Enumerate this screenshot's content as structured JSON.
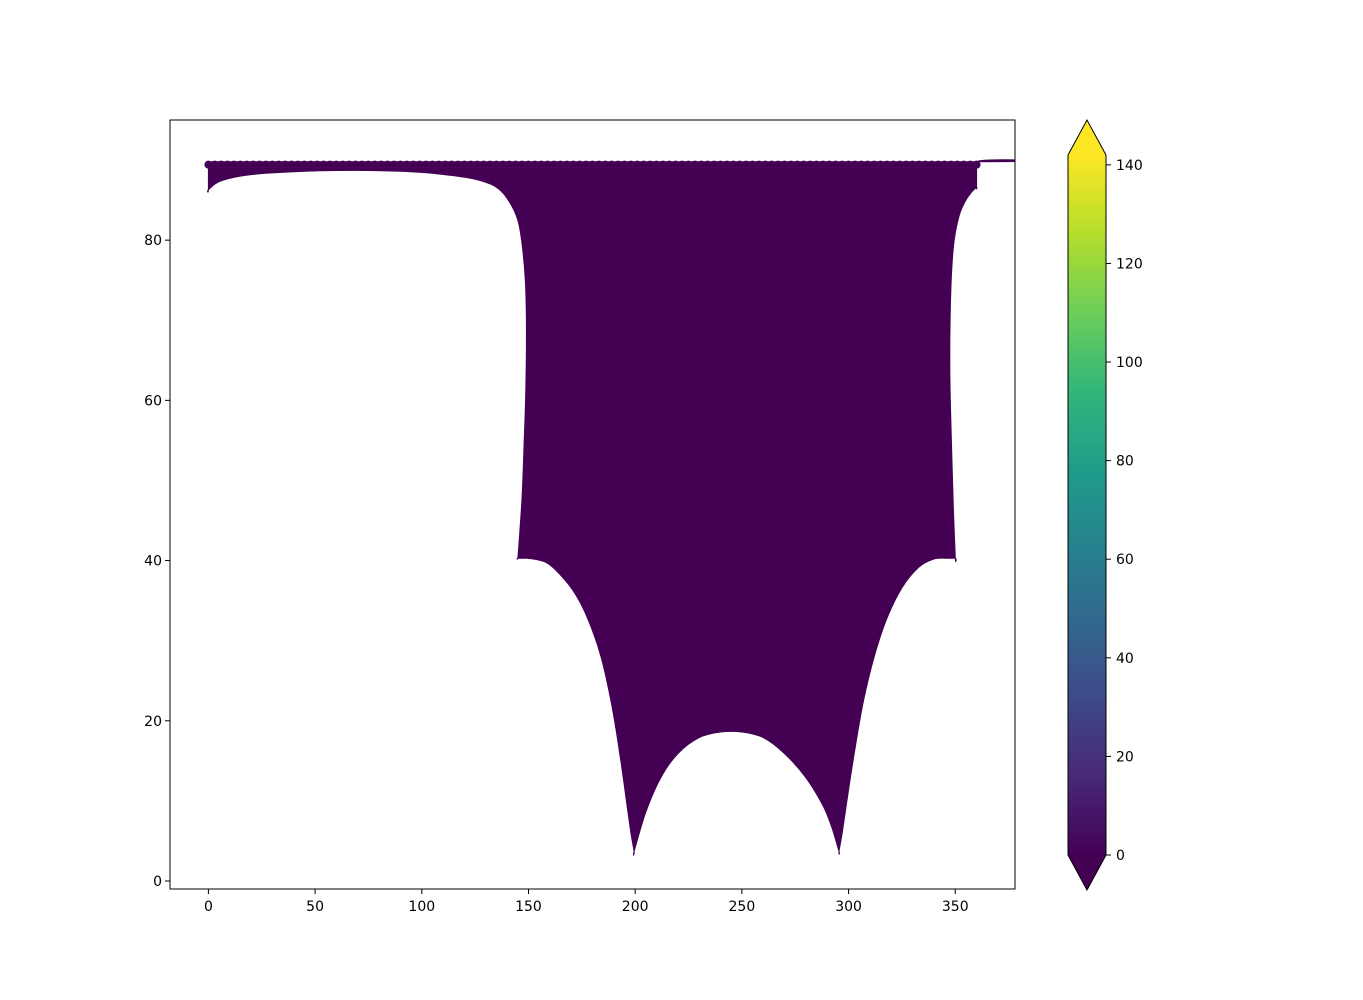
{
  "chart_data": {
    "type": "scatter",
    "title": "",
    "xlabel": "",
    "ylabel": "",
    "xlim": [
      -18,
      378
    ],
    "ylim": [
      -1,
      95
    ],
    "grid": false,
    "xticks": [
      0,
      50,
      100,
      150,
      200,
      250,
      300,
      350
    ],
    "xtick_labels": [
      "0",
      "50",
      "100",
      "150",
      "200",
      "250",
      "300",
      "350"
    ],
    "yticks": [
      0,
      20,
      40,
      60,
      80
    ],
    "ytick_labels": [
      "0",
      "20",
      "40",
      "60",
      "80"
    ],
    "fill_color": "#440154",
    "region_outline": {
      "top_edge": [
        [
          0,
          89.8
        ],
        [
          360,
          89.8
        ]
      ],
      "left_edge": [
        [
          0,
          89.8
        ],
        [
          0,
          86.3
        ]
      ],
      "left_upper_curve": [
        [
          0,
          86.3
        ],
        [
          5,
          87.3
        ],
        [
          15,
          88.0
        ],
        [
          30,
          88.4
        ],
        [
          60,
          88.7
        ],
        [
          90,
          88.6
        ],
        [
          110,
          88.2
        ],
        [
          125,
          87.6
        ],
        [
          135,
          86.6
        ],
        [
          141,
          84.8
        ],
        [
          145,
          82.5
        ],
        [
          147,
          79.5
        ],
        [
          148.5,
          75
        ],
        [
          149,
          70
        ],
        [
          148.8,
          62
        ],
        [
          148,
          55
        ],
        [
          147,
          48
        ],
        [
          145.5,
          42
        ],
        [
          145,
          40.3
        ]
      ],
      "ledge_left": [
        [
          145,
          40.3
        ],
        [
          149.5,
          40.3
        ]
      ],
      "left_lower_curve": [
        [
          149.5,
          40.3
        ],
        [
          158,
          39.8
        ],
        [
          165,
          38.2
        ],
        [
          172,
          35.8
        ],
        [
          178,
          32.6
        ],
        [
          184,
          28
        ],
        [
          189,
          22
        ],
        [
          193,
          15.5
        ],
        [
          196,
          9.8
        ],
        [
          198,
          6
        ],
        [
          199.5,
          3.7
        ]
      ],
      "middle_arch": [
        [
          199.5,
          3.7
        ],
        [
          205,
          8.6
        ],
        [
          212,
          12.9
        ],
        [
          220,
          15.9
        ],
        [
          230,
          17.9
        ],
        [
          240,
          18.6
        ],
        [
          250,
          18.6
        ],
        [
          260,
          17.9
        ],
        [
          270,
          15.9
        ],
        [
          280,
          12.9
        ],
        [
          288,
          9.4
        ],
        [
          292,
          6.8
        ],
        [
          295.5,
          3.7
        ]
      ],
      "right_lower_curve": [
        [
          295.5,
          3.7
        ],
        [
          297,
          6
        ],
        [
          299.5,
          10.5
        ],
        [
          303,
          16.5
        ],
        [
          307,
          22.5
        ],
        [
          312,
          28
        ],
        [
          318,
          32.8
        ],
        [
          325,
          36.6
        ],
        [
          333,
          39.2
        ],
        [
          340,
          40.2
        ],
        [
          345,
          40.3
        ]
      ],
      "ledge_right": [
        [
          345,
          40.3
        ],
        [
          350,
          40.3
        ]
      ],
      "right_upper_curve": [
        [
          350,
          40.3
        ],
        [
          349.2,
          46
        ],
        [
          348.2,
          55
        ],
        [
          347.5,
          63
        ],
        [
          347.6,
          70
        ],
        [
          348.3,
          76
        ],
        [
          349.5,
          80
        ],
        [
          352,
          83.2
        ],
        [
          355,
          85
        ],
        [
          358,
          86.1
        ],
        [
          360,
          86.6
        ]
      ],
      "right_edge": [
        [
          360,
          86.6
        ],
        [
          360,
          89.8
        ]
      ]
    },
    "colorbar": {
      "colormap": "viridis",
      "vmin": 0,
      "vmax": 142,
      "extend": "both",
      "ticks": [
        0,
        20,
        40,
        60,
        80,
        100,
        120,
        140
      ],
      "tick_labels": [
        "0",
        "20",
        "40",
        "60",
        "80",
        "100",
        "120",
        "140"
      ],
      "stops": [
        "#440154",
        "#482878",
        "#3e4989",
        "#31688e",
        "#26828e",
        "#1f9e89",
        "#35b779",
        "#6ece58",
        "#b5de2b",
        "#fde725"
      ]
    }
  }
}
